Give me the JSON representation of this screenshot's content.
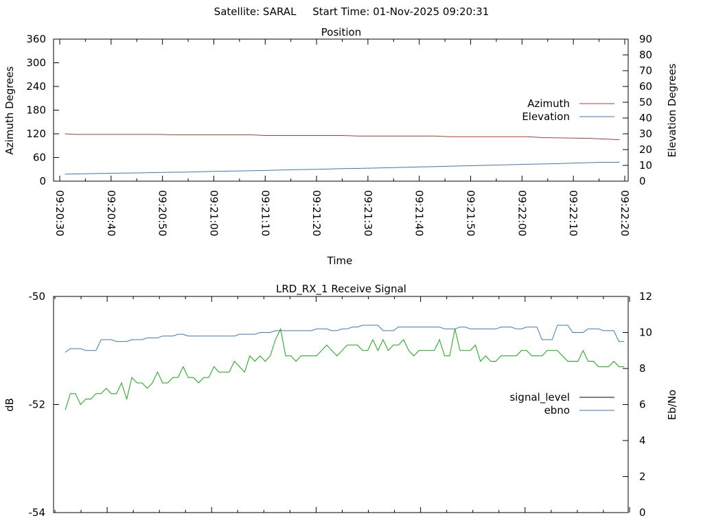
{
  "header": "Satellite: SARAL     Start Time: 01-Nov-2025 09:20:31",
  "chart_data": [
    {
      "type": "line",
      "title": "Position",
      "xlabel": "Time",
      "ylabel": "Azimuth Degrees",
      "y2label": "Elevation Degrees",
      "x_ticks": [
        "09:20:30",
        "09:20:40",
        "09:20:50",
        "09:21:00",
        "09:21:10",
        "09:21:20",
        "09:21:30",
        "09:21:40",
        "09:21:50",
        "09:22:00",
        "09:22:10",
        "09:22:20"
      ],
      "x_tick_seconds": [
        30,
        40,
        50,
        60,
        70,
        80,
        90,
        100,
        110,
        120,
        130,
        140
      ],
      "xlim": [
        30,
        140
      ],
      "ylim": [
        0,
        360
      ],
      "y_ticks": [
        "0",
        "60",
        "120",
        "180",
        "240",
        "300",
        "360"
      ],
      "y2lim": [
        0,
        90
      ],
      "y2_ticks": [
        "0",
        "10",
        "20",
        "30",
        "40",
        "50",
        "60",
        "70",
        "80",
        "90"
      ],
      "legend_position": "right",
      "series": [
        {
          "name": "Azimuth",
          "axis": "y",
          "color": "#b0383e",
          "x": [
            31,
            33,
            49,
            52,
            67,
            70,
            85,
            88,
            103,
            106,
            121,
            124,
            133,
            139
          ],
          "y": [
            120,
            118.5,
            118.5,
            117.5,
            117.5,
            115.7,
            115.7,
            114.5,
            114.5,
            112.5,
            112.5,
            110.5,
            108.5,
            105
          ]
        },
        {
          "name": "Elevation",
          "axis": "y2",
          "color": "#3d78b5",
          "x": [
            31,
            35,
            40,
            45,
            50,
            55,
            60,
            65,
            70,
            75,
            80,
            85,
            90,
            95,
            100,
            105,
            110,
            115,
            120,
            125,
            130,
            135,
            139
          ],
          "y": [
            4.5,
            4.7,
            5,
            5.2,
            5.5,
            5.8,
            6.2,
            6.5,
            6.8,
            7.2,
            7.5,
            7.9,
            8.2,
            8.6,
            9,
            9.4,
            9.8,
            10.2,
            10.6,
            11,
            11.4,
            11.9,
            12
          ]
        }
      ]
    },
    {
      "type": "line",
      "title": "LRD_RX_1 Receive Signal",
      "xlabel": "",
      "ylabel": "dB",
      "y2label": "Eb/No",
      "ylim": [
        -54,
        -50
      ],
      "y_ticks": [
        "-54",
        "-52",
        "-50"
      ],
      "y2lim": [
        0,
        12
      ],
      "y2_ticks": [
        "0",
        "2",
        "4",
        "6",
        "8",
        "10",
        "12"
      ],
      "x_minor_ticks": 11,
      "legend_position": "right",
      "series": [
        {
          "name": "signal_level",
          "axis": "y",
          "color": "#000000",
          "x": [],
          "y": []
        },
        {
          "name": "ebno",
          "axis": "y2",
          "color": "#3d78b5",
          "x": [
            31,
            32,
            33,
            34,
            35,
            36,
            37,
            38,
            39,
            40,
            41,
            42,
            43,
            44,
            45,
            46,
            47,
            48,
            49,
            50,
            51,
            52,
            53,
            54,
            55,
            56,
            57,
            58,
            59,
            60,
            61,
            62,
            63,
            64,
            65,
            66,
            67,
            68,
            69,
            70,
            71,
            72,
            73,
            74,
            75,
            76,
            77,
            78,
            79,
            80,
            81,
            82,
            83,
            84,
            85,
            86,
            87,
            88,
            89,
            90,
            91,
            92,
            93,
            94,
            95,
            96,
            97,
            98,
            99,
            100,
            101,
            102,
            103,
            104,
            105,
            106,
            107,
            108,
            109,
            110,
            111,
            112,
            113,
            114,
            115,
            116,
            117,
            118,
            119,
            120,
            121,
            122,
            123,
            124,
            125,
            126,
            127,
            128,
            129,
            130,
            131,
            132,
            133,
            134,
            135,
            136,
            137,
            138,
            139,
            140
          ],
          "y": [
            8.9,
            9.1,
            9.1,
            9.1,
            9.0,
            9.0,
            9.0,
            9.6,
            9.6,
            9.6,
            9.5,
            9.5,
            9.5,
            9.6,
            9.6,
            9.6,
            9.7,
            9.7,
            9.7,
            9.8,
            9.8,
            9.8,
            9.9,
            9.9,
            9.8,
            9.8,
            9.8,
            9.8,
            9.8,
            9.8,
            9.8,
            9.8,
            9.8,
            9.8,
            9.9,
            9.9,
            9.9,
            9.9,
            10.0,
            10.0,
            10.0,
            10.1,
            10.1,
            10.1,
            10.1,
            10.1,
            10.1,
            10.1,
            10.1,
            10.2,
            10.2,
            10.2,
            10.1,
            10.1,
            10.2,
            10.2,
            10.3,
            10.3,
            10.4,
            10.4,
            10.4,
            10.4,
            10.1,
            10.1,
            10.1,
            10.3,
            10.3,
            10.3,
            10.3,
            10.3,
            10.3,
            10.3,
            10.3,
            10.3,
            10.2,
            10.2,
            10.2,
            10.3,
            10.3,
            10.2,
            10.2,
            10.2,
            10.2,
            10.2,
            10.2,
            10.3,
            10.3,
            10.3,
            10.2,
            10.2,
            10.3,
            10.3,
            10.3,
            9.6,
            9.6,
            9.6,
            10.4,
            10.4,
            10.4,
            10.0,
            10.0,
            10.0,
            10.2,
            10.2,
            10.2,
            10.1,
            10.1,
            10.1,
            9.5,
            9.5
          ],
          "y_display": [
            8.9,
            9.1,
            9.1,
            9.1,
            9.0,
            9.0,
            9.0,
            9.6,
            9.6,
            9.6,
            9.5,
            9.5,
            9.5,
            9.6,
            9.6,
            9.6,
            9.7,
            9.7,
            9.7,
            9.8,
            9.8,
            9.8,
            9.9,
            9.9,
            9.8,
            9.8,
            9.8,
            9.8,
            9.8,
            9.8,
            9.8,
            9.8,
            9.8,
            9.8,
            9.9,
            9.9,
            9.9,
            9.9,
            10.0,
            10.0,
            10.0,
            10.1,
            10.1,
            10.1,
            10.1,
            10.1,
            10.1,
            10.1,
            10.1,
            10.2,
            10.2,
            10.2,
            10.1,
            10.1,
            10.2,
            10.2,
            10.3,
            10.3,
            10.4,
            10.4,
            10.4,
            10.4,
            10.1,
            10.1,
            10.1,
            10.3,
            10.3,
            10.3,
            10.3,
            10.3,
            10.3,
            10.3,
            10.3,
            10.3,
            10.2,
            10.2,
            10.2,
            10.3,
            10.3,
            10.2,
            10.2,
            10.2,
            10.2,
            10.2,
            10.2,
            10.3,
            10.3,
            10.3,
            10.2,
            10.2,
            10.3,
            10.3,
            10.3,
            9.6,
            9.6,
            9.6,
            10.4,
            10.4,
            10.4,
            10.0,
            10.0,
            10.0,
            10.2,
            10.2,
            10.2,
            10.1,
            10.1,
            10.1,
            9.5,
            9.5
          ]
        },
        {
          "name": "",
          "axis": "y",
          "color": "#1aa31a",
          "x": [
            31,
            32,
            33,
            34,
            35,
            36,
            37,
            38,
            39,
            40,
            41,
            42,
            43,
            44,
            45,
            46,
            47,
            48,
            49,
            50,
            51,
            52,
            53,
            54,
            55,
            56,
            57,
            58,
            59,
            60,
            61,
            62,
            63,
            64,
            65,
            66,
            67,
            68,
            69,
            70,
            71,
            72,
            73,
            74,
            75,
            76,
            77,
            78,
            79,
            80,
            81,
            82,
            83,
            84,
            85,
            86,
            87,
            88,
            89,
            90,
            91,
            92,
            93,
            94,
            95,
            96,
            97,
            98,
            99,
            100,
            101,
            102,
            103,
            104,
            105,
            106,
            107,
            108,
            109,
            110,
            111,
            112,
            113,
            114,
            115,
            116,
            117,
            118,
            119,
            120,
            121,
            122,
            123,
            124,
            125,
            126,
            127,
            128,
            129,
            130,
            131,
            132,
            133,
            134,
            135,
            136,
            137,
            138,
            139,
            140
          ],
          "y": [
            -52.1,
            -51.8,
            -51.8,
            -52.0,
            -51.9,
            -51.9,
            -51.8,
            -51.8,
            -51.7,
            -51.8,
            -51.8,
            -51.6,
            -51.9,
            -51.5,
            -51.6,
            -51.6,
            -51.7,
            -51.6,
            -51.4,
            -51.6,
            -51.6,
            -51.5,
            -51.5,
            -51.3,
            -51.5,
            -51.5,
            -51.6,
            -51.5,
            -51.5,
            -51.3,
            -51.4,
            -51.4,
            -51.4,
            -51.2,
            -51.3,
            -51.4,
            -51.1,
            -51.2,
            -51.1,
            -51.2,
            -51.1,
            -50.8,
            -50.6,
            -51.1,
            -51.1,
            -51.2,
            -51.1,
            -51.1,
            -51.1,
            -51.1,
            -51.0,
            -50.9,
            -51.0,
            -51.1,
            -51.0,
            -50.9,
            -50.9,
            -50.9,
            -51.0,
            -51.0,
            -50.8,
            -51.0,
            -50.8,
            -51.0,
            -50.9,
            -50.9,
            -50.8,
            -51.0,
            -51.1,
            -51.0,
            -51.0,
            -51.0,
            -51.0,
            -50.8,
            -51.1,
            -51.1,
            -50.6,
            -51.0,
            -51.0,
            -51.0,
            -50.9,
            -51.2,
            -51.1,
            -51.2,
            -51.2,
            -51.1,
            -51.1,
            -51.1,
            -51.1,
            -51.0,
            -51.0,
            -51.1,
            -51.1,
            -51.1,
            -51.0,
            -51.0,
            -51.0,
            -51.1,
            -51.2,
            -51.2,
            -51.2,
            -51.0,
            -51.2,
            -51.2,
            -51.3,
            -51.3,
            -51.3,
            -51.2,
            -51.3,
            -51.3
          ]
        }
      ]
    }
  ]
}
